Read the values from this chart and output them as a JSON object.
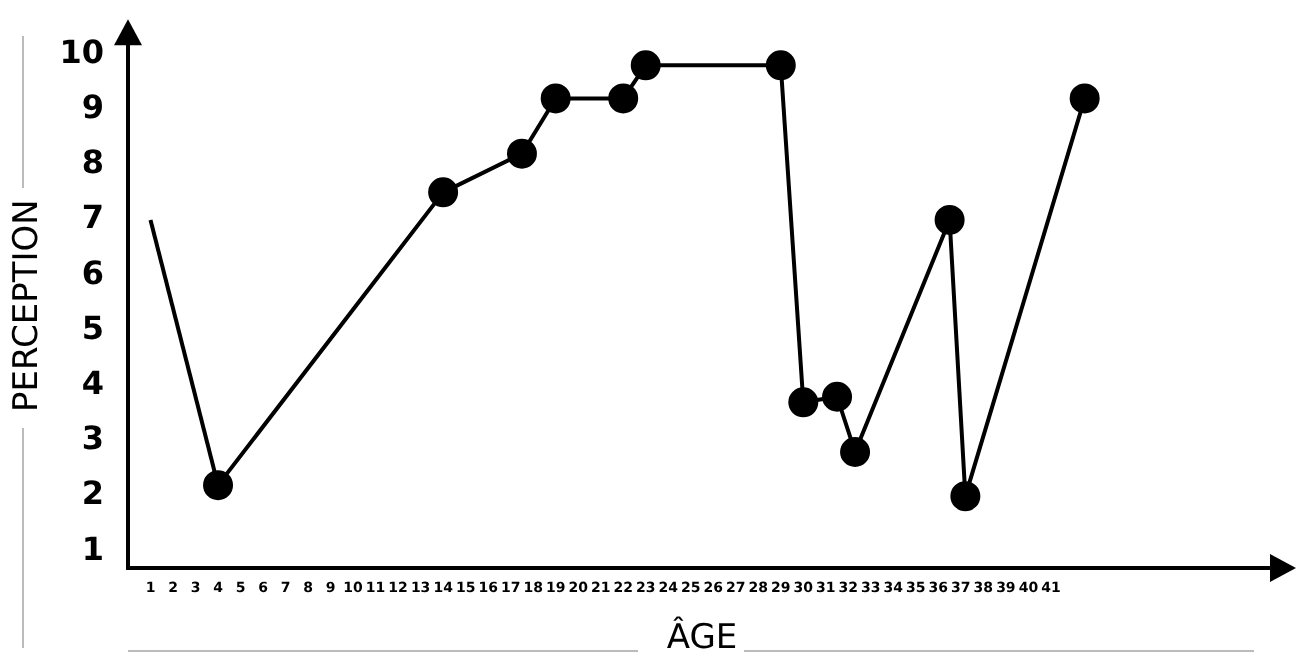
{
  "chart_data": {
    "type": "line",
    "xlabel": "ÂGE",
    "ylabel": "PERCEPTION",
    "xlim": [
      0,
      51
    ],
    "xticks": [
      1,
      2,
      3,
      4,
      5,
      6,
      7,
      8,
      9,
      10,
      11,
      12,
      13,
      14,
      15,
      16,
      17,
      18,
      19,
      20,
      21,
      22,
      23,
      24,
      25,
      26,
      27,
      28,
      29,
      30,
      31,
      32,
      33,
      34,
      35,
      36,
      37,
      38,
      39,
      40,
      41
    ],
    "ylim": [
      0.7,
      10.2
    ],
    "yticks": [
      1,
      2,
      3,
      4,
      5,
      6,
      7,
      8,
      9,
      10
    ],
    "grid": false,
    "legend": false,
    "line_style": "solid",
    "series": [
      {
        "color": "#000000",
        "x": [
          1,
          4
        ],
        "values": [
          7,
          2.2
        ]
      },
      {
        "color": "#000000",
        "marker": "circle",
        "x": [
          4,
          14,
          17.5,
          19,
          22,
          23,
          29,
          30,
          31.5,
          32.3,
          36.5,
          37.2,
          42.5
        ],
        "values": [
          2.2,
          7.5,
          8.2,
          9.2,
          9.2,
          9.8,
          9.8,
          3.7,
          3.8,
          2.8,
          7.0,
          2.0,
          9.2
        ]
      }
    ]
  }
}
